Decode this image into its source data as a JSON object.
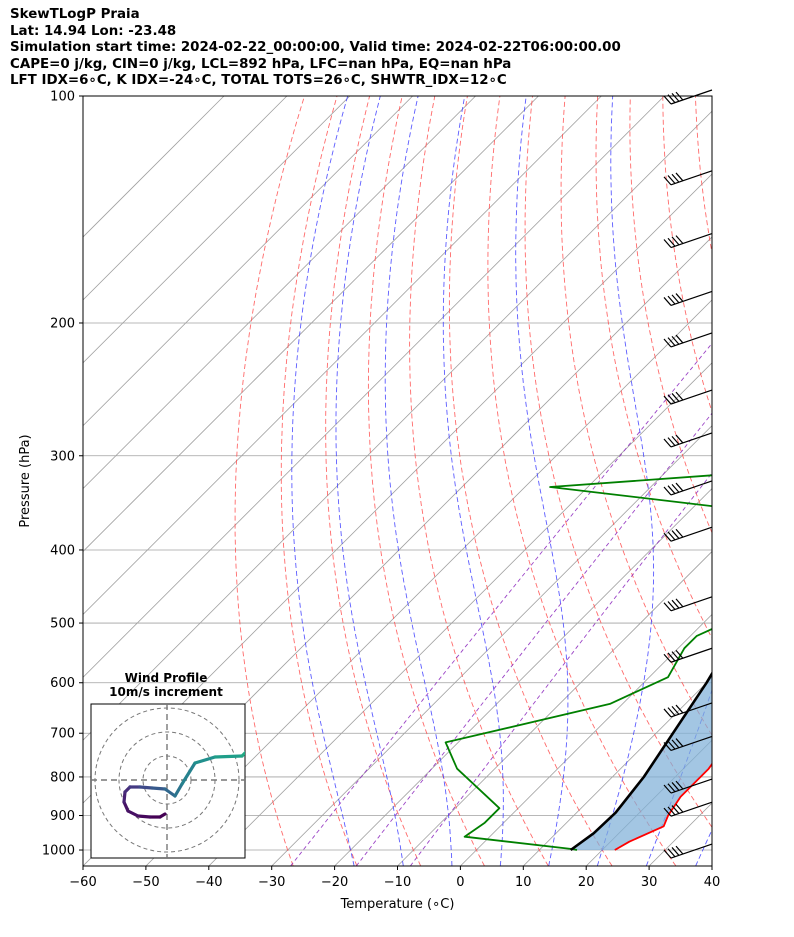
{
  "header": {
    "line1": "SkewTLogP Praia",
    "line2": "Lat: 14.94   Lon: -23.48",
    "line3": "Simulation start time: 2024-02-22_00:00:00, Valid time: 2024-02-22T06:00:00.00",
    "line4": "CAPE=0 j/kg, CIN=0 j/kg, LCL=892 hPa, LFC=nan hPa, EQ=nan hPa",
    "line5": "LFT IDX=6∘C, K IDX=-24∘C, TOTAL TOTS=26∘C, SHWTR_IDX=12∘C"
  },
  "chart_data": {
    "type": "line",
    "xlabel": "Temperature (∘C)",
    "ylabel": "Pressure (hPa)",
    "xlim": [
      -60,
      40
    ],
    "ylim": [
      1050,
      100
    ],
    "y_scale": "log",
    "x_ticks": [
      "−60",
      "−50",
      "−40",
      "−30",
      "−20",
      "−10",
      "0",
      "10",
      "20",
      "30",
      "40"
    ],
    "y_ticks": [
      "1000",
      "900",
      "800",
      "700",
      "600",
      "500",
      "400",
      "300",
      "200",
      "100"
    ],
    "grid": true,
    "series": [
      {
        "role": "temperature",
        "color": "#ff0000",
        "points": [
          [
            22,
            1000
          ],
          [
            23,
            975
          ],
          [
            26,
            930
          ],
          [
            25,
            900
          ],
          [
            24,
            850
          ],
          [
            24,
            780
          ],
          [
            22.8,
            720
          ],
          [
            20,
            660
          ],
          [
            17,
            620
          ],
          [
            15,
            540
          ],
          [
            12,
            470
          ],
          [
            10,
            420
          ],
          [
            9,
            380
          ],
          [
            9,
            340
          ],
          [
            7,
            300
          ],
          [
            5,
            270
          ],
          [
            -3,
            210
          ],
          [
            -6,
            165
          ],
          [
            -7,
            130
          ],
          [
            -4,
            115
          ],
          [
            0,
            100
          ]
        ]
      },
      {
        "role": "dewpoint",
        "color": "#008000",
        "points": [
          [
            16,
            1000
          ],
          [
            15,
            997
          ],
          [
            -4,
            960
          ],
          [
            -3,
            920
          ],
          [
            -3,
            880
          ],
          [
            -16,
            780
          ],
          [
            -22,
            720
          ],
          [
            -2,
            640
          ],
          [
            3,
            590
          ],
          [
            1,
            540
          ],
          [
            1,
            520
          ],
          [
            6,
            480
          ],
          [
            8,
            440
          ],
          [
            8,
            420
          ],
          [
            3,
            380
          ],
          [
            -10,
            355
          ],
          [
            -46,
            330
          ],
          [
            -4,
            310
          ],
          [
            1,
            290
          ],
          [
            -5,
            255
          ],
          [
            -9,
            240
          ],
          [
            -14,
            205
          ],
          [
            -18,
            180
          ],
          [
            -25,
            145
          ],
          [
            -22,
            130
          ],
          [
            -21,
            115
          ],
          [
            -17,
            103
          ],
          [
            -14,
            100
          ]
        ]
      },
      {
        "role": "parcel",
        "color": "#000000",
        "points": [
          [
            15,
            1000
          ],
          [
            16,
            950
          ],
          [
            16.2,
            892
          ],
          [
            15,
            800
          ],
          [
            10,
            600
          ],
          [
            4,
            450
          ],
          [
            -5,
            330
          ],
          [
            -12,
            260
          ],
          [
            -20,
            200
          ],
          [
            -28,
            150
          ],
          [
            -38,
            100
          ]
        ]
      }
    ],
    "wind_barbs_hpa": [
      100,
      128,
      155,
      185,
      210,
      250,
      285,
      330,
      380,
      470,
      550,
      650,
      720,
      820,
      880,
      1000
    ],
    "inset": {
      "title": "Wind Profile",
      "subtitle": "10m/s increment",
      "hodograph_colormap": "viridis"
    }
  }
}
